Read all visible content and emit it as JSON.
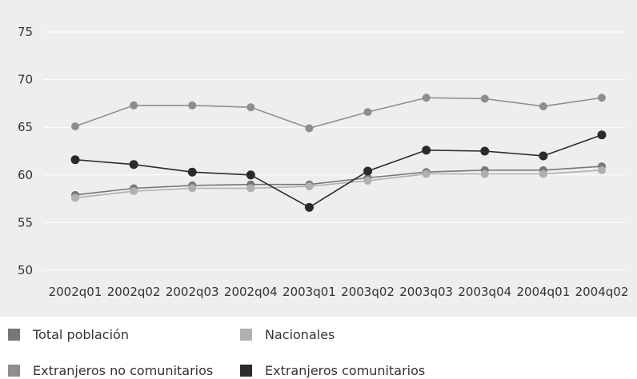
{
  "chart_data": {
    "type": "line",
    "title": "",
    "xlabel": "",
    "ylabel": "",
    "categories": [
      "2002q01",
      "2002q02",
      "2002q03",
      "2002q04",
      "2003q01",
      "2003q02",
      "2003q03",
      "2003q04",
      "2004q01",
      "2004q02"
    ],
    "ylim": [
      50,
      75
    ],
    "yticks": [
      "50",
      "55",
      "60",
      "65",
      "70",
      "75"
    ],
    "grid": true,
    "legend_position": "bottom",
    "series": [
      {
        "name": "Total población",
        "color": "#777777",
        "values": [
          57.9,
          58.6,
          58.9,
          59.0,
          59.0,
          59.7,
          60.3,
          60.5,
          60.5,
          60.9
        ]
      },
      {
        "name": "Nacionales",
        "color": "#b0b0b0",
        "values": [
          57.6,
          58.3,
          58.6,
          58.6,
          58.8,
          59.4,
          60.1,
          60.1,
          60.1,
          60.5
        ]
      },
      {
        "name": "Extranjeros no comunitarios",
        "color": "#8e8e8e",
        "values": [
          65.1,
          67.3,
          67.3,
          67.1,
          64.9,
          66.6,
          68.1,
          68.0,
          67.2,
          68.1
        ]
      },
      {
        "name": "Extranjeros comunitarios",
        "color": "#2b2b2b",
        "values": [
          61.6,
          61.1,
          60.3,
          60.0,
          56.6,
          60.4,
          62.6,
          62.5,
          62.0,
          64.2
        ]
      }
    ]
  }
}
